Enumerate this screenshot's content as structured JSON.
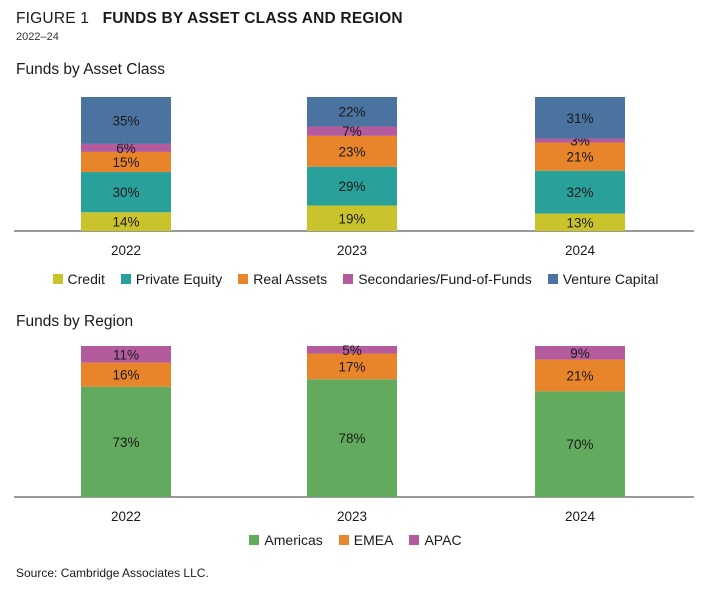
{
  "figure": {
    "label": "FIGURE 1",
    "title": "FUNDS BY ASSET CLASS AND REGION",
    "subtitle": "2022–24"
  },
  "source": "Source: Cambridge Associates LLC.",
  "chart_data": [
    {
      "type": "bar",
      "stacked": "percent",
      "title": "Funds by Asset Class",
      "categories": [
        "2022",
        "2023",
        "2024"
      ],
      "ylim": [
        0,
        100
      ],
      "grid": false,
      "legend_position": "bottom",
      "series": [
        {
          "name": "Credit",
          "color": "#c9c42b",
          "values": [
            14,
            19,
            13
          ],
          "labels": [
            "14%",
            "19%",
            "13%"
          ]
        },
        {
          "name": "Private Equity",
          "color": "#2aa09a",
          "values": [
            30,
            29,
            32
          ],
          "labels": [
            "30%",
            "29%",
            "32%"
          ]
        },
        {
          "name": "Real Assets",
          "color": "#e8842a",
          "values": [
            15,
            23,
            21
          ],
          "labels": [
            "15%",
            "23%",
            "21%"
          ]
        },
        {
          "name": "Secondaries/Fund-of-Funds",
          "color": "#b35b9c",
          "values": [
            6,
            7,
            3
          ],
          "labels": [
            "6%",
            "7%",
            "3%"
          ]
        },
        {
          "name": "Venture Capital",
          "color": "#4a73a0",
          "values": [
            35,
            22,
            31
          ],
          "labels": [
            "35%",
            "22%",
            "31%"
          ]
        }
      ]
    },
    {
      "type": "bar",
      "stacked": "percent",
      "title": "Funds by Region",
      "categories": [
        "2022",
        "2023",
        "2024"
      ],
      "ylim": [
        0,
        100
      ],
      "grid": false,
      "legend_position": "bottom",
      "series": [
        {
          "name": "Americas",
          "color": "#62ab5e",
          "values": [
            73,
            78,
            70
          ],
          "labels": [
            "73%",
            "78%",
            "70%"
          ]
        },
        {
          "name": "EMEA",
          "color": "#e8842a",
          "values": [
            16,
            17,
            21
          ],
          "labels": [
            "16%",
            "17%",
            "21%"
          ]
        },
        {
          "name": "APAC",
          "color": "#b35b9c",
          "values": [
            11,
            5,
            9
          ],
          "labels": [
            "11%",
            "5%",
            "9%"
          ]
        }
      ]
    }
  ]
}
